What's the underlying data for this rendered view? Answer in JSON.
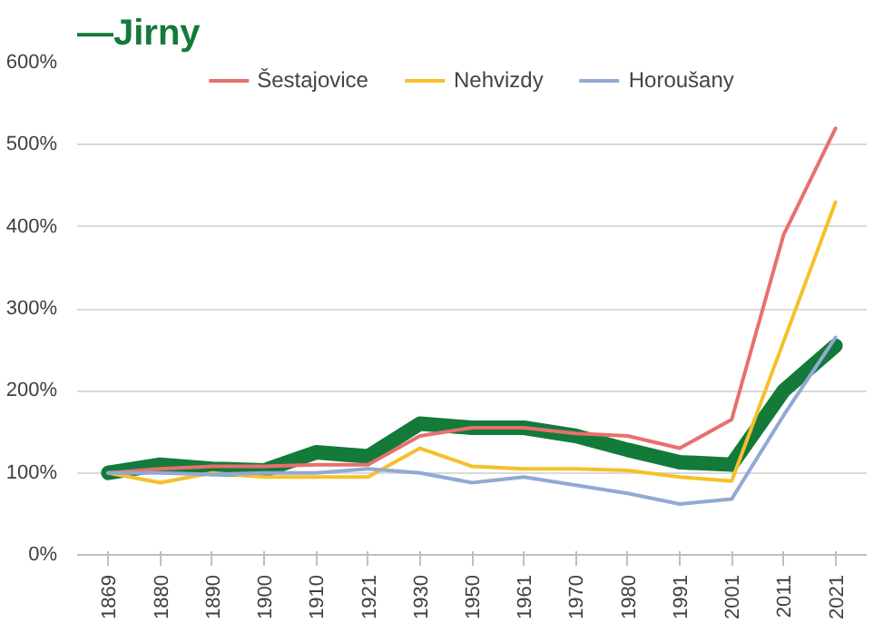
{
  "chart_data": {
    "type": "line",
    "title": "—Jirny",
    "categories": [
      "1869",
      "1880",
      "1890",
      "1900",
      "1910",
      "1921",
      "1930",
      "1950",
      "1961",
      "1970",
      "1980",
      "1991",
      "2001",
      "2011",
      "2021"
    ],
    "series": [
      {
        "name": "Šestajovice",
        "color": "#e8706e",
        "values": [
          100,
          105,
          108,
          108,
          110,
          110,
          145,
          155,
          155,
          148,
          145,
          130,
          165,
          390,
          520
        ]
      },
      {
        "name": "Nehvizdy",
        "color": "#f5c02a",
        "values": [
          100,
          88,
          100,
          95,
          95,
          95,
          130,
          108,
          105,
          105,
          103,
          95,
          90,
          260,
          430
        ]
      },
      {
        "name": "Horoušany",
        "color": "#91a9d4",
        "values": [
          100,
          100,
          98,
          100,
          100,
          105,
          100,
          88,
          95,
          85,
          75,
          62,
          68,
          170,
          265
        ]
      },
      {
        "color": "#137a3a",
        "values": [
          100,
          110,
          105,
          103,
          125,
          120,
          160,
          155,
          155,
          145,
          128,
          113,
          110,
          200,
          255
        ]
      }
    ],
    "ylim": [
      0,
      600
    ],
    "yticks": [
      {
        "value": 0,
        "label": "0%"
      },
      {
        "value": 100,
        "label": "100%"
      },
      {
        "value": 200,
        "label": "200%"
      },
      {
        "value": 300,
        "label": "300%"
      },
      {
        "value": 400,
        "label": "400%"
      },
      {
        "value": 500,
        "label": "500%"
      },
      {
        "value": 600,
        "label": "600%"
      }
    ],
    "grid": "y",
    "legend": "top",
    "marker": "none",
    "line_style": "solid"
  }
}
